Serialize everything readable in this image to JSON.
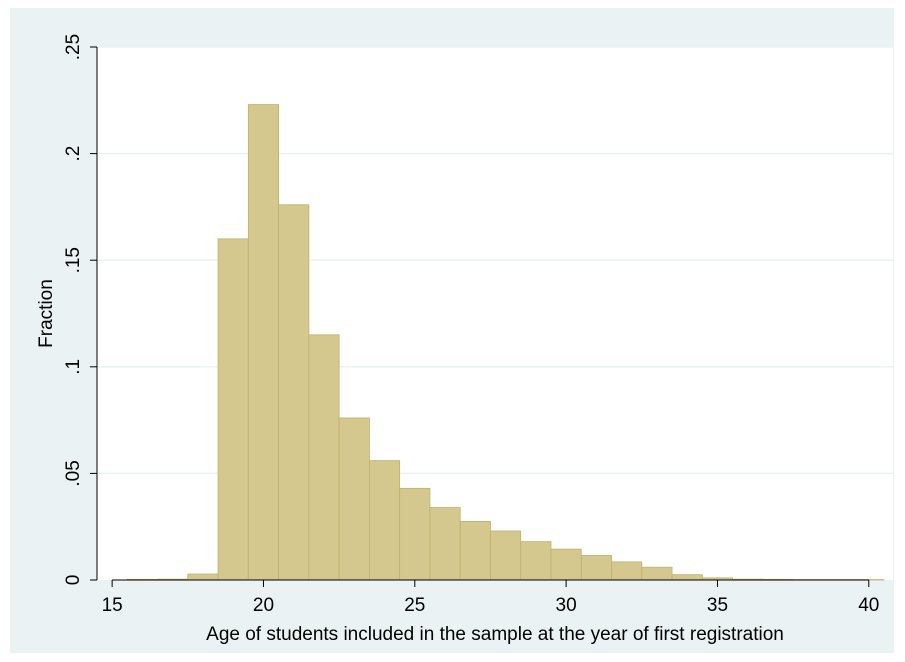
{
  "chart_data": {
    "type": "bar",
    "title": "",
    "xlabel": "Age of students included in the sample at the year of first registration",
    "ylabel": "Fraction",
    "xlim": [
      14.5,
      40.8
    ],
    "ylim": [
      0,
      0.25
    ],
    "x_ticks": [
      15,
      20,
      25,
      30,
      35,
      40
    ],
    "x_tick_labels": [
      "15",
      "20",
      "25",
      "30",
      "35",
      "40"
    ],
    "y_ticks": [
      0,
      0.05,
      0.1,
      0.15,
      0.2,
      0.25
    ],
    "y_tick_labels": [
      "0",
      ".05",
      ".1",
      ".15",
      ".2",
      ".25"
    ],
    "grid": true,
    "legend": "none",
    "bin_width": 1,
    "bin_starts": [
      15.5,
      16.5,
      17.5,
      18.5,
      19.5,
      20.5,
      21.5,
      22.5,
      23.5,
      24.5,
      25.5,
      26.5,
      27.5,
      28.5,
      29.5,
      30.5,
      31.5,
      32.5,
      33.5,
      34.5,
      35.5,
      36.5,
      37.5,
      38.5,
      39.5
    ],
    "values": [
      0.0003,
      0.0004,
      0.0028,
      0.16,
      0.223,
      0.176,
      0.115,
      0.076,
      0.056,
      0.043,
      0.034,
      0.0275,
      0.023,
      0.018,
      0.0145,
      0.0115,
      0.0085,
      0.006,
      0.0025,
      0.001,
      0.0004,
      0.0003,
      0.0002,
      0.0002,
      0.0002
    ],
    "colors": {
      "bar_fill": "#d4c88e",
      "bar_stroke": "#c0b06a",
      "plot_bg": "#ffffff",
      "outer_bg": "#eaf2f3",
      "grid": "#eaf2f3",
      "axis": "#000000"
    }
  }
}
